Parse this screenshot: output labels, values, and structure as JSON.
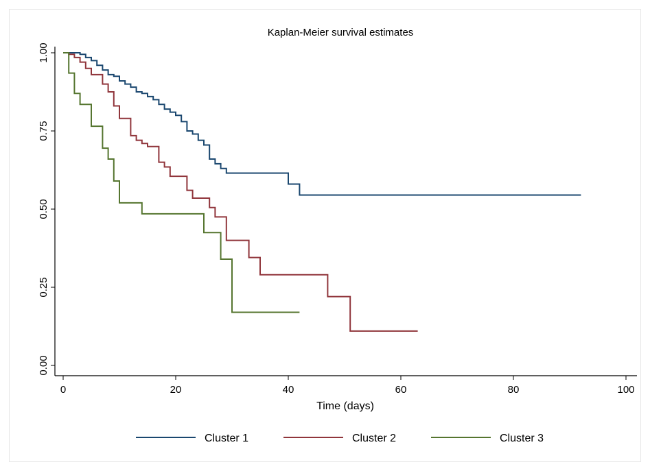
{
  "chart_data": {
    "type": "line",
    "step": true,
    "title": "Kaplan-Meier survival estimates",
    "xlabel": "Time (days)",
    "ylabel": "",
    "xlim": [
      0,
      100
    ],
    "ylim": [
      0,
      1
    ],
    "xticks": [
      0,
      20,
      40,
      60,
      80,
      100
    ],
    "xtick_labels": [
      "0",
      "20",
      "40",
      "60",
      "80",
      "100"
    ],
    "yticks": [
      0,
      0.25,
      0.5,
      0.75,
      1
    ],
    "ytick_labels": [
      "0.00",
      "0.25",
      "0.50",
      "0.75",
      "1.00"
    ],
    "grid": false,
    "legend_position": "bottom",
    "series": [
      {
        "name": "Cluster 1",
        "color": "#1a476f",
        "points": [
          [
            0,
            1.0
          ],
          [
            2,
            1.0
          ],
          [
            3,
            0.995
          ],
          [
            4,
            0.985
          ],
          [
            5,
            0.975
          ],
          [
            6,
            0.96
          ],
          [
            7,
            0.945
          ],
          [
            8,
            0.93
          ],
          [
            9,
            0.925
          ],
          [
            10,
            0.91
          ],
          [
            11,
            0.9
          ],
          [
            12,
            0.89
          ],
          [
            13,
            0.875
          ],
          [
            14,
            0.87
          ],
          [
            15,
            0.86
          ],
          [
            16,
            0.85
          ],
          [
            17,
            0.835
          ],
          [
            18,
            0.82
          ],
          [
            19,
            0.81
          ],
          [
            20,
            0.8
          ],
          [
            21,
            0.78
          ],
          [
            22,
            0.75
          ],
          [
            23,
            0.74
          ],
          [
            24,
            0.72
          ],
          [
            25,
            0.705
          ],
          [
            26,
            0.66
          ],
          [
            27,
            0.645
          ],
          [
            28,
            0.63
          ],
          [
            29,
            0.615
          ],
          [
            40,
            0.58
          ],
          [
            42,
            0.545
          ],
          [
            92,
            0.545
          ]
        ]
      },
      {
        "name": "Cluster 2",
        "color": "#90353b",
        "points": [
          [
            0,
            1.0
          ],
          [
            1,
            0.995
          ],
          [
            2,
            0.985
          ],
          [
            3,
            0.97
          ],
          [
            4,
            0.95
          ],
          [
            5,
            0.93
          ],
          [
            7,
            0.9
          ],
          [
            8,
            0.875
          ],
          [
            9,
            0.83
          ],
          [
            10,
            0.79
          ],
          [
            12,
            0.735
          ],
          [
            13,
            0.72
          ],
          [
            14,
            0.71
          ],
          [
            15,
            0.7
          ],
          [
            17,
            0.65
          ],
          [
            18,
            0.635
          ],
          [
            19,
            0.605
          ],
          [
            22,
            0.56
          ],
          [
            23,
            0.535
          ],
          [
            26,
            0.505
          ],
          [
            27,
            0.475
          ],
          [
            29,
            0.4
          ],
          [
            33,
            0.345
          ],
          [
            35,
            0.29
          ],
          [
            47,
            0.22
          ],
          [
            51,
            0.11
          ],
          [
            63,
            0.11
          ]
        ]
      },
      {
        "name": "Cluster 3",
        "color": "#55752f",
        "points": [
          [
            0,
            1.0
          ],
          [
            1,
            0.935
          ],
          [
            2,
            0.87
          ],
          [
            3,
            0.835
          ],
          [
            5,
            0.765
          ],
          [
            7,
            0.695
          ],
          [
            8,
            0.66
          ],
          [
            9,
            0.59
          ],
          [
            10,
            0.52
          ],
          [
            14,
            0.485
          ],
          [
            25,
            0.425
          ],
          [
            28,
            0.34
          ],
          [
            30,
            0.17
          ],
          [
            42,
            0.17
          ]
        ]
      }
    ]
  }
}
